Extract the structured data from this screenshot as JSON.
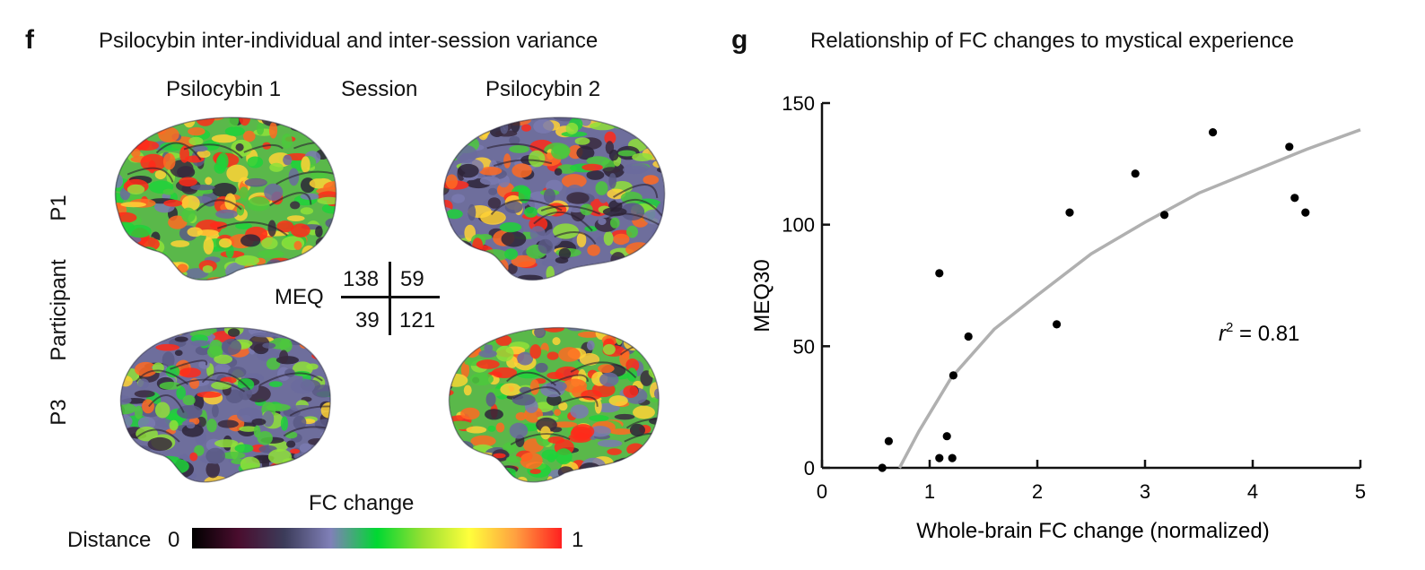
{
  "panel_f": {
    "letter": "f",
    "title": "Psilocybin inter-individual and inter-session variance",
    "columns": [
      "Psilocybin 1",
      "Session",
      "Psilocybin 2"
    ],
    "rows": [
      "P1",
      "Participant",
      "P3"
    ],
    "meq": {
      "label": "MEQ",
      "p1_psilocybin1": "138",
      "p1_psilocybin2": "59",
      "p3_psilocybin1": "39",
      "p3_psilocybin2": "121"
    },
    "brain_intensity": {
      "p1_psilocybin1": 0.78,
      "p1_psilocybin2": 0.3,
      "p3_psilocybin1": 0.18,
      "p3_psilocybin2": 0.74
    },
    "colorbar": {
      "title": "FC change",
      "label": "Distance",
      "min_label": "0",
      "max_label": "1",
      "stops": [
        "#000000",
        "#4a0d2e",
        "#3c3c5a",
        "#8080b8",
        "#00d832",
        "#98e032",
        "#ffff3c",
        "#ffa040",
        "#ff2020"
      ]
    }
  },
  "panel_g": {
    "letter": "g",
    "title": "Relationship of FC changes to mystical experience"
  },
  "chart_data": {
    "type": "scatter",
    "title": "Relationship of FC changes to mystical experience",
    "xlabel": "Whole-brain FC change (normalized)",
    "ylabel": "MEQ30",
    "xlim": [
      0,
      5
    ],
    "ylim": [
      0,
      150
    ],
    "xticks": [
      "0",
      "1",
      "2",
      "3",
      "4",
      "5"
    ],
    "yticks": [
      "0",
      "50",
      "100",
      "150"
    ],
    "points": [
      {
        "x": 0.56,
        "y": 0
      },
      {
        "x": 0.62,
        "y": 11
      },
      {
        "x": 1.09,
        "y": 4
      },
      {
        "x": 1.16,
        "y": 13
      },
      {
        "x": 1.21,
        "y": 4
      },
      {
        "x": 1.22,
        "y": 38
      },
      {
        "x": 1.09,
        "y": 80
      },
      {
        "x": 1.36,
        "y": 54
      },
      {
        "x": 2.18,
        "y": 59
      },
      {
        "x": 2.3,
        "y": 105
      },
      {
        "x": 2.91,
        "y": 121
      },
      {
        "x": 3.18,
        "y": 104
      },
      {
        "x": 3.63,
        "y": 138
      },
      {
        "x": 4.34,
        "y": 132
      },
      {
        "x": 4.39,
        "y": 111
      },
      {
        "x": 4.49,
        "y": 105
      }
    ],
    "fit_curve": [
      {
        "x": 0.72,
        "y": 0
      },
      {
        "x": 0.9,
        "y": 15
      },
      {
        "x": 1.2,
        "y": 37
      },
      {
        "x": 1.6,
        "y": 57
      },
      {
        "x": 2.0,
        "y": 71
      },
      {
        "x": 2.5,
        "y": 88
      },
      {
        "x": 3.0,
        "y": 101
      },
      {
        "x": 3.5,
        "y": 113
      },
      {
        "x": 4.0,
        "y": 122
      },
      {
        "x": 4.5,
        "y": 131
      },
      {
        "x": 5.0,
        "y": 139
      }
    ],
    "annotation": {
      "r_symbol": "r",
      "exponent": "2",
      "text": " = 0.81"
    },
    "grid": false,
    "point_color": "#000000",
    "curve_color": "#b0b0b0"
  }
}
